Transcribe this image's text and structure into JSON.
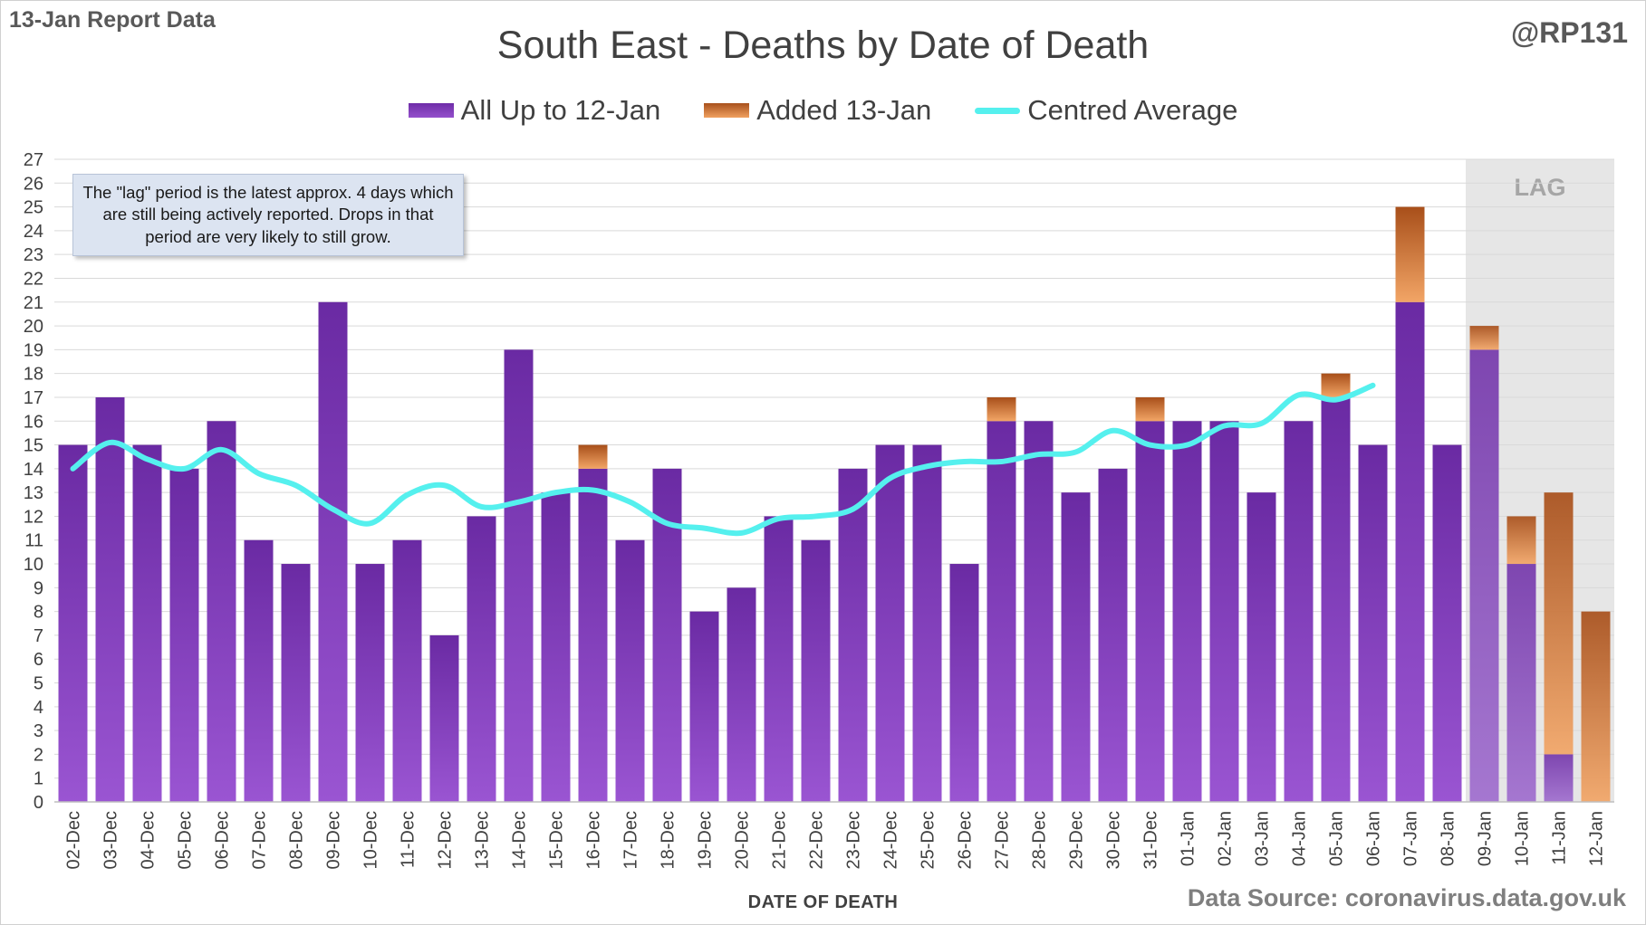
{
  "header": {
    "report_label": "13-Jan Report Data",
    "handle": "@RP131",
    "source": "Data Source: coronavirus.data.gov.uk"
  },
  "annotation": "The \"lag\" period is the latest approx. 4 days which are still being actively reported.  Drops in that period are very likely to still grow.",
  "lag_label": "LAG",
  "colors": {
    "base": "#7a35b5",
    "added": "#e07a2e",
    "average": "#55f0ee",
    "lag_shade": "#e6e6e6"
  },
  "chart_data": {
    "type": "bar",
    "title": "South East - Deaths by Date of Death",
    "xlabel": "DATE OF DEATH",
    "ylabel": "",
    "ylim": [
      0,
      27
    ],
    "yticks": [
      0,
      1,
      2,
      3,
      4,
      5,
      6,
      7,
      8,
      9,
      10,
      11,
      12,
      13,
      14,
      15,
      16,
      17,
      18,
      19,
      20,
      21,
      22,
      23,
      24,
      25,
      26,
      27
    ],
    "legend_position": "top",
    "grid": true,
    "stacked": true,
    "categories": [
      "02-Dec",
      "03-Dec",
      "04-Dec",
      "05-Dec",
      "06-Dec",
      "07-Dec",
      "08-Dec",
      "09-Dec",
      "10-Dec",
      "11-Dec",
      "12-Dec",
      "13-Dec",
      "14-Dec",
      "15-Dec",
      "16-Dec",
      "17-Dec",
      "18-Dec",
      "19-Dec",
      "20-Dec",
      "21-Dec",
      "22-Dec",
      "23-Dec",
      "24-Dec",
      "25-Dec",
      "26-Dec",
      "27-Dec",
      "28-Dec",
      "29-Dec",
      "30-Dec",
      "31-Dec",
      "01-Jan",
      "02-Jan",
      "03-Jan",
      "04-Jan",
      "05-Jan",
      "06-Jan",
      "07-Jan",
      "08-Jan",
      "09-Jan",
      "10-Jan",
      "11-Jan",
      "12-Jan"
    ],
    "series": [
      {
        "name": "All Up to 12-Jan",
        "kind": "bar",
        "values": [
          15,
          17,
          15,
          14,
          16,
          11,
          10,
          21,
          10,
          11,
          7,
          12,
          19,
          13,
          14,
          11,
          14,
          8,
          9,
          12,
          11,
          14,
          15,
          15,
          10,
          16,
          16,
          13,
          14,
          16,
          16,
          16,
          13,
          16,
          17,
          15,
          21,
          15,
          19,
          10,
          2,
          0
        ]
      },
      {
        "name": "Added 13-Jan",
        "kind": "bar",
        "values": [
          0,
          0,
          0,
          0,
          0,
          0,
          0,
          0,
          0,
          0,
          0,
          0,
          0,
          0,
          1,
          0,
          0,
          0,
          0,
          0,
          0,
          0,
          0,
          0,
          0,
          1,
          0,
          0,
          0,
          1,
          0,
          0,
          0,
          0,
          1,
          0,
          4,
          0,
          1,
          2,
          11,
          8
        ]
      },
      {
        "name": "Centred Average",
        "kind": "line",
        "values": [
          14.0,
          15.1,
          14.4,
          14.0,
          14.8,
          13.8,
          13.3,
          12.3,
          11.7,
          12.9,
          13.3,
          12.4,
          12.6,
          13.0,
          13.1,
          12.6,
          11.7,
          11.5,
          11.3,
          11.9,
          12.0,
          12.3,
          13.6,
          14.1,
          14.3,
          14.3,
          14.6,
          14.7,
          15.6,
          15.0,
          15.0,
          15.8,
          15.9,
          17.1,
          16.9,
          17.5,
          null,
          null,
          null,
          null,
          null,
          null
        ]
      }
    ],
    "lag_categories": [
      "09-Jan",
      "10-Jan",
      "11-Jan",
      "12-Jan"
    ]
  }
}
